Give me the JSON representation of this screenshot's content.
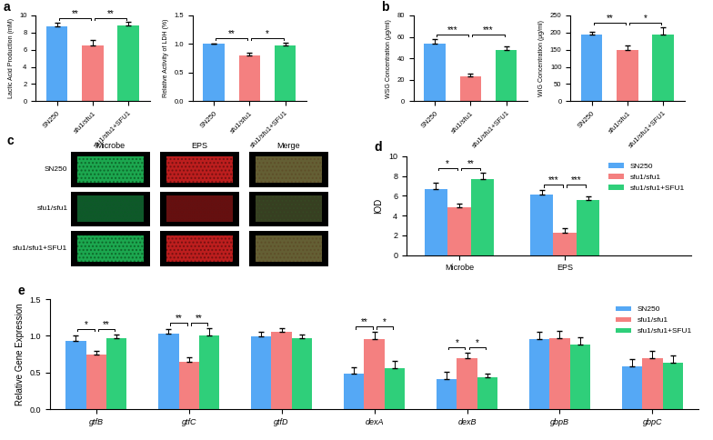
{
  "chart_data": [
    {
      "type": "bar",
      "panel_label": "a",
      "ylabel": "Lactic Acid Production (mM)",
      "categories": [
        "SN250",
        "sfu1/sfu1",
        "sfu1/sfu1+SFU1"
      ],
      "values": [
        8.7,
        6.5,
        8.8
      ],
      "errors": [
        0.4,
        0.6,
        0.4
      ],
      "colors": [
        "#55a8f5",
        "#f48080",
        "#2fcf7a"
      ],
      "ylim": [
        0,
        10
      ],
      "yticks": [
        0,
        2,
        4,
        6,
        8,
        10
      ],
      "annotations": [
        {
          "between": [
            0,
            1
          ],
          "text": "**"
        },
        {
          "between": [
            1,
            2
          ],
          "text": "**"
        }
      ]
    },
    {
      "type": "bar",
      "ylabel": "Relative Activity of LDH (%)",
      "categories": [
        "SN250",
        "sfu1/sfu1",
        "sfu1/sfu1+SFU1"
      ],
      "values": [
        1.0,
        0.8,
        0.98
      ],
      "errors": [
        0,
        0.05,
        0.05
      ],
      "colors": [
        "#55a8f5",
        "#f48080",
        "#2fcf7a"
      ],
      "ylim": [
        0,
        1.5
      ],
      "yticks": [
        {
          "value": 0,
          "label": "0.0"
        },
        0.5,
        {
          "value": 1,
          "label": "1.0"
        },
        1.5
      ],
      "annotations": [
        {
          "between": [
            0,
            1
          ],
          "text": "**"
        },
        {
          "between": [
            1,
            2
          ],
          "text": "*"
        }
      ]
    },
    {
      "type": "bar",
      "panel_label": "b",
      "ylabel": "WSG Concentration (μg/ml)",
      "categories": [
        "SN250",
        "sfu1/sfu1",
        "sfu1/sfu1+SFU1"
      ],
      "values": [
        54,
        23,
        48
      ],
      "errors": [
        4,
        2.5,
        3
      ],
      "colors": [
        "#55a8f5",
        "#f48080",
        "#2fcf7a"
      ],
      "ylim": [
        0,
        80
      ],
      "yticks": [
        0,
        20,
        40,
        60,
        80
      ],
      "annotations": [
        {
          "between": [
            0,
            1
          ],
          "text": "***"
        },
        {
          "between": [
            1,
            2
          ],
          "text": "***"
        }
      ]
    },
    {
      "type": "bar",
      "ylabel": "WIG Concentration (μg/ml)",
      "categories": [
        "SN250",
        "sfu1/sfu1",
        "sfu1/sfu1+SFU1"
      ],
      "values": [
        195,
        150,
        195
      ],
      "errors": [
        8,
        12,
        20
      ],
      "colors": [
        "#55a8f5",
        "#f48080",
        "#2fcf7a"
      ],
      "ylim": [
        0,
        250
      ],
      "yticks": [
        0,
        50,
        100,
        150,
        200,
        250
      ],
      "annotations": [
        {
          "between": [
            0,
            1
          ],
          "text": "**"
        },
        {
          "between": [
            1,
            2
          ],
          "text": "*"
        }
      ]
    },
    {
      "type": "image_grid",
      "panel_label": "c",
      "columns": [
        "Microbe",
        "EPS",
        "Merge"
      ],
      "rows": [
        "SN250",
        "sfu1/sfu1",
        "sfu1/sfu1+SFU1"
      ]
    },
    {
      "type": "grouped_bar",
      "panel_label": "d",
      "ylabel": "IOD",
      "categories": [
        "Microbe",
        "EPS"
      ],
      "series": [
        {
          "name": "SN250",
          "color": "#55a8f5",
          "values": [
            6.7,
            6.1
          ],
          "errors": [
            0.6,
            0.5
          ]
        },
        {
          "name": "sfu1/sfu1",
          "color": "#f48080",
          "values": [
            4.8,
            2.3
          ],
          "errors": [
            0.4,
            0.4
          ]
        },
        {
          "name": "sfu1/sfu1+SFU1",
          "color": "#2fcf7a",
          "values": [
            7.7,
            5.6
          ],
          "errors": [
            0.6,
            0.3
          ]
        }
      ],
      "ylim": [
        0,
        10
      ],
      "yticks": [
        0,
        2,
        4,
        6,
        8,
        10
      ],
      "legend": "upper right",
      "annotations": [
        {
          "category": 0,
          "between": [
            0,
            1
          ],
          "text": "*"
        },
        {
          "category": 0,
          "between": [
            1,
            2
          ],
          "text": "**"
        },
        {
          "category": 1,
          "between": [
            0,
            1
          ],
          "text": "***"
        },
        {
          "category": 1,
          "between": [
            1,
            2
          ],
          "text": "***"
        }
      ]
    },
    {
      "type": "grouped_bar",
      "panel_label": "e",
      "ylabel": "Relative Gene Expression",
      "categories": [
        "gtfB",
        "gtfC",
        "gtfD",
        "dexA",
        "dexB",
        "gbpB",
        "gbpC"
      ],
      "series": [
        {
          "name": "SN250",
          "color": "#55a8f5",
          "values": [
            0.93,
            1.03,
            0.99,
            0.49,
            0.41,
            0.95,
            0.58
          ],
          "errors": [
            0.07,
            0.06,
            0.06,
            0.08,
            0.1,
            0.1,
            0.1
          ]
        },
        {
          "name": "sfu1/sfu1",
          "color": "#f48080",
          "values": [
            0.74,
            0.65,
            1.06,
            0.95,
            0.7,
            0.97,
            0.7
          ],
          "errors": [
            0.06,
            0.06,
            0.05,
            0.1,
            0.07,
            0.1,
            0.1
          ]
        },
        {
          "name": "sfu1/sfu1+SFU1",
          "color": "#2fcf7a",
          "values": [
            0.97,
            1.0,
            0.97,
            0.56,
            0.44,
            0.88,
            0.63
          ],
          "errors": [
            0.05,
            0.1,
            0.05,
            0.1,
            0.05,
            0.1,
            0.1
          ]
        }
      ],
      "ylim": [
        0,
        1.5
      ],
      "yticks": [
        {
          "value": 0,
          "label": "0.0"
        },
        0.5,
        {
          "value": 1,
          "label": "1.0"
        },
        1.5
      ],
      "legend": "upper right",
      "annotations": [
        {
          "category": 0,
          "between": [
            0,
            1
          ],
          "text": "*"
        },
        {
          "category": 0,
          "between": [
            1,
            2
          ],
          "text": "**"
        },
        {
          "category": 1,
          "between": [
            0,
            1
          ],
          "text": "**"
        },
        {
          "category": 1,
          "between": [
            1,
            2
          ],
          "text": "**"
        },
        {
          "category": 3,
          "between": [
            0,
            1
          ],
          "text": "**"
        },
        {
          "category": 3,
          "between": [
            1,
            2
          ],
          "text": "*"
        },
        {
          "category": 4,
          "between": [
            0,
            1
          ],
          "text": "*"
        },
        {
          "category": 4,
          "between": [
            1,
            2
          ],
          "text": "*"
        }
      ]
    }
  ]
}
